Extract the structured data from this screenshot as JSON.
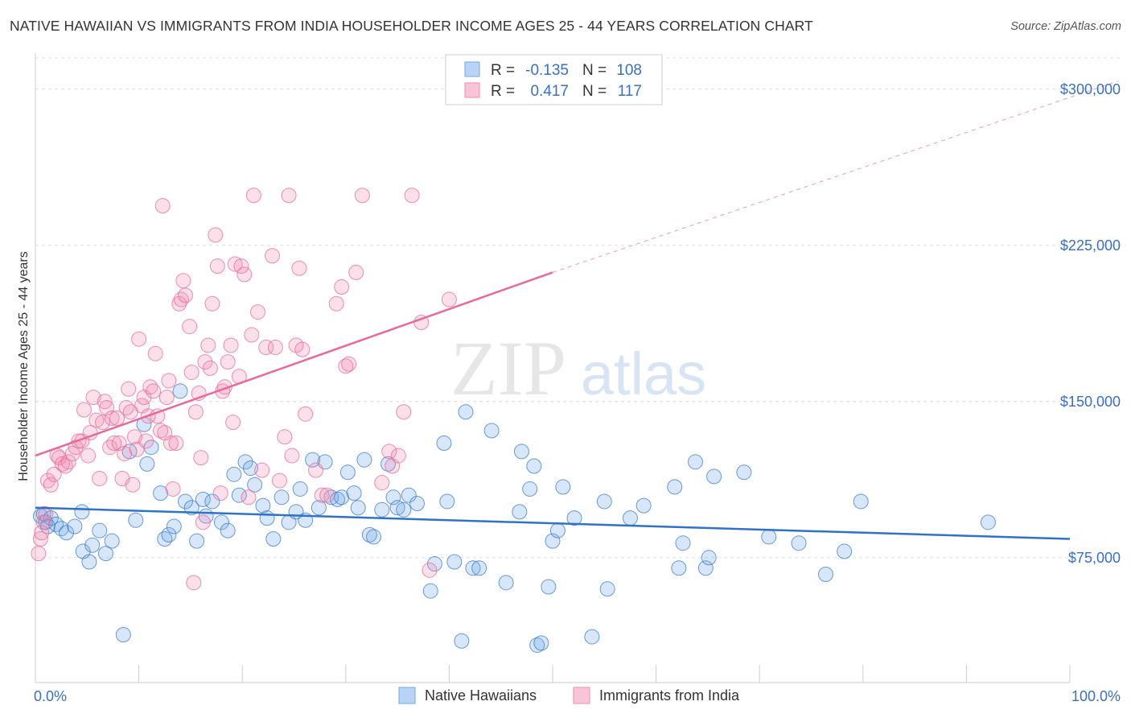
{
  "header": {
    "title": "NATIVE HAWAIIAN VS IMMIGRANTS FROM INDIA HOUSEHOLDER INCOME AGES 25 - 44 YEARS CORRELATION CHART",
    "source": "Source: ZipAtlas.com"
  },
  "watermark": {
    "zip": "ZIP",
    "atlas": "atlas"
  },
  "legend": {
    "r_label": "R =",
    "n_label": "N =",
    "rows": [
      {
        "r": "-0.135",
        "n": "108"
      },
      {
        "r": "0.417",
        "n": "117"
      }
    ]
  },
  "colors": {
    "blue": "#6fa8e8",
    "blue_line": "#2f72c8",
    "pink": "#f08bb0",
    "pink_line": "#e8699a",
    "axis_text": "#3a6fc4"
  },
  "chart_data": {
    "type": "scatter",
    "xlabel": "",
    "ylabel": "Householder Income Ages 25 - 44 years",
    "xlim": [
      0,
      100
    ],
    "ylim": [
      15000,
      315000
    ],
    "x_tick_labels": [
      "0.0%",
      "100.0%"
    ],
    "y_ticks": [
      {
        "value": 75000,
        "label": "$75,000"
      },
      {
        "value": 150000,
        "label": "$150,000"
      },
      {
        "value": 225000,
        "label": "$225,000"
      },
      {
        "value": 300000,
        "label": "$300,000"
      }
    ],
    "grid": "horizontal dashed",
    "legend_position": "top-center",
    "series": [
      {
        "name": "Native Hawaiians",
        "color": "#6fa8e8",
        "trend": {
          "x": [
            0,
            100
          ],
          "y": [
            99000,
            84000
          ],
          "dashed_extension": false
        },
        "points": [
          [
            0.5,
            95000
          ],
          [
            0.8,
            96000
          ],
          [
            1.0,
            92000
          ],
          [
            1.2,
            90000
          ],
          [
            1.5,
            94000
          ],
          [
            2.0,
            91000
          ],
          [
            2.5,
            89000
          ],
          [
            3.0,
            87000
          ],
          [
            3.8,
            90000
          ],
          [
            4.5,
            97000
          ],
          [
            4.6,
            78000
          ],
          [
            5.2,
            73000
          ],
          [
            5.5,
            81000
          ],
          [
            6.2,
            88000
          ],
          [
            6.8,
            77000
          ],
          [
            7.4,
            83000
          ],
          [
            8.5,
            38000
          ],
          [
            9.1,
            126000
          ],
          [
            9.7,
            93000
          ],
          [
            10.5,
            139000
          ],
          [
            10.8,
            120000
          ],
          [
            11.2,
            128000
          ],
          [
            12.1,
            106000
          ],
          [
            12.5,
            84000
          ],
          [
            12.9,
            86000
          ],
          [
            13.4,
            90000
          ],
          [
            14.0,
            155000
          ],
          [
            14.5,
            102000
          ],
          [
            15.1,
            99000
          ],
          [
            15.6,
            83000
          ],
          [
            16.2,
            103000
          ],
          [
            16.5,
            95000
          ],
          [
            17.1,
            102000
          ],
          [
            18.0,
            92000
          ],
          [
            18.6,
            88000
          ],
          [
            19.2,
            115000
          ],
          [
            19.7,
            105000
          ],
          [
            20.3,
            121000
          ],
          [
            20.8,
            118000
          ],
          [
            21.2,
            110000
          ],
          [
            22.0,
            100000
          ],
          [
            22.4,
            94000
          ],
          [
            23.0,
            84000
          ],
          [
            23.8,
            104000
          ],
          [
            24.5,
            92000
          ],
          [
            25.2,
            97000
          ],
          [
            25.6,
            108000
          ],
          [
            26.1,
            93000
          ],
          [
            26.8,
            122000
          ],
          [
            27.4,
            99000
          ],
          [
            28.0,
            121000
          ],
          [
            28.6,
            104000
          ],
          [
            29.2,
            103000
          ],
          [
            29.6,
            104000
          ],
          [
            30.2,
            116000
          ],
          [
            30.8,
            106000
          ],
          [
            31.2,
            99000
          ],
          [
            31.8,
            122000
          ],
          [
            32.3,
            86000
          ],
          [
            32.7,
            85000
          ],
          [
            33.5,
            98000
          ],
          [
            34.1,
            120000
          ],
          [
            34.6,
            104000
          ],
          [
            35.0,
            99000
          ],
          [
            35.6,
            98000
          ],
          [
            36.1,
            105000
          ],
          [
            36.9,
            101000
          ],
          [
            38.2,
            59000
          ],
          [
            38.6,
            72000
          ],
          [
            39.5,
            130000
          ],
          [
            39.8,
            102000
          ],
          [
            40.5,
            73000
          ],
          [
            41.2,
            35000
          ],
          [
            41.6,
            145000
          ],
          [
            42.3,
            70000
          ],
          [
            42.9,
            70000
          ],
          [
            44.1,
            136000
          ],
          [
            45.5,
            63000
          ],
          [
            46.8,
            97000
          ],
          [
            47.0,
            126000
          ],
          [
            47.8,
            108000
          ],
          [
            48.2,
            119000
          ],
          [
            48.5,
            33000
          ],
          [
            48.9,
            34000
          ],
          [
            49.6,
            61000
          ],
          [
            50.0,
            83000
          ],
          [
            50.5,
            88000
          ],
          [
            51.0,
            109000
          ],
          [
            52.1,
            94000
          ],
          [
            53.8,
            37000
          ],
          [
            55.0,
            102000
          ],
          [
            55.3,
            60000
          ],
          [
            57.5,
            94000
          ],
          [
            58.8,
            100000
          ],
          [
            61.8,
            109000
          ],
          [
            62.2,
            70000
          ],
          [
            62.6,
            82000
          ],
          [
            63.8,
            121000
          ],
          [
            64.8,
            70000
          ],
          [
            65.1,
            75000
          ],
          [
            65.6,
            114000
          ],
          [
            68.5,
            116000
          ],
          [
            70.9,
            85000
          ],
          [
            73.8,
            82000
          ],
          [
            76.4,
            67000
          ],
          [
            78.2,
            78000
          ],
          [
            79.8,
            102000
          ],
          [
            92.1,
            92000
          ]
        ]
      },
      {
        "name": "Immigrants from India",
        "color": "#f08bb0",
        "trend": {
          "x": [
            0,
            50
          ],
          "y": [
            124000,
            212000
          ],
          "dashed_extension": true,
          "dashed_to": [
            100,
            300000
          ]
        },
        "points": [
          [
            0.3,
            77000
          ],
          [
            0.5,
            84000
          ],
          [
            0.6,
            87000
          ],
          [
            0.8,
            92000
          ],
          [
            1.0,
            96000
          ],
          [
            1.2,
            112000
          ],
          [
            1.5,
            110000
          ],
          [
            1.8,
            115000
          ],
          [
            2.1,
            124000
          ],
          [
            2.3,
            123000
          ],
          [
            2.6,
            120000
          ],
          [
            2.9,
            119000
          ],
          [
            3.2,
            121000
          ],
          [
            3.6,
            125000
          ],
          [
            3.9,
            128000
          ],
          [
            4.2,
            131000
          ],
          [
            4.5,
            131000
          ],
          [
            4.7,
            146000
          ],
          [
            5.1,
            124000
          ],
          [
            5.3,
            135000
          ],
          [
            5.6,
            152000
          ],
          [
            5.9,
            141000
          ],
          [
            6.2,
            113000
          ],
          [
            6.5,
            140000
          ],
          [
            6.7,
            150000
          ],
          [
            6.9,
            147000
          ],
          [
            7.2,
            128000
          ],
          [
            7.4,
            142000
          ],
          [
            7.6,
            130000
          ],
          [
            7.9,
            142000
          ],
          [
            8.1,
            130000
          ],
          [
            8.4,
            113000
          ],
          [
            8.6,
            125000
          ],
          [
            8.8,
            147000
          ],
          [
            9.0,
            156000
          ],
          [
            9.2,
            145000
          ],
          [
            9.4,
            110000
          ],
          [
            9.6,
            133000
          ],
          [
            9.8,
            127000
          ],
          [
            10.0,
            180000
          ],
          [
            10.3,
            148000
          ],
          [
            10.5,
            152000
          ],
          [
            10.7,
            131000
          ],
          [
            10.9,
            143000
          ],
          [
            11.1,
            157000
          ],
          [
            11.4,
            155000
          ],
          [
            11.6,
            173000
          ],
          [
            11.8,
            143000
          ],
          [
            12.1,
            136000
          ],
          [
            12.3,
            244000
          ],
          [
            12.5,
            135000
          ],
          [
            12.7,
            152000
          ],
          [
            12.9,
            160000
          ],
          [
            13.1,
            130000
          ],
          [
            13.3,
            108000
          ],
          [
            13.6,
            130000
          ],
          [
            13.9,
            197000
          ],
          [
            14.1,
            199000
          ],
          [
            14.3,
            208000
          ],
          [
            14.5,
            201000
          ],
          [
            14.9,
            186000
          ],
          [
            15.1,
            164000
          ],
          [
            15.3,
            63000
          ],
          [
            15.5,
            145000
          ],
          [
            15.8,
            154000
          ],
          [
            16.0,
            123000
          ],
          [
            16.2,
            92000
          ],
          [
            16.4,
            169000
          ],
          [
            16.7,
            177000
          ],
          [
            16.9,
            166000
          ],
          [
            17.1,
            197000
          ],
          [
            17.4,
            230000
          ],
          [
            17.6,
            215000
          ],
          [
            17.9,
            106000
          ],
          [
            18.1,
            155000
          ],
          [
            18.3,
            157000
          ],
          [
            18.6,
            169000
          ],
          [
            18.9,
            177000
          ],
          [
            19.1,
            140000
          ],
          [
            19.3,
            216000
          ],
          [
            19.7,
            162000
          ],
          [
            19.9,
            215000
          ],
          [
            20.2,
            211000
          ],
          [
            20.6,
            104000
          ],
          [
            20.9,
            182000
          ],
          [
            21.1,
            249000
          ],
          [
            21.5,
            193000
          ],
          [
            21.9,
            117000
          ],
          [
            22.3,
            176000
          ],
          [
            22.9,
            220000
          ],
          [
            23.2,
            176000
          ],
          [
            23.6,
            112000
          ],
          [
            24.1,
            133000
          ],
          [
            24.5,
            249000
          ],
          [
            24.8,
            124000
          ],
          [
            25.2,
            177000
          ],
          [
            25.5,
            214000
          ],
          [
            25.8,
            175000
          ],
          [
            26.1,
            144000
          ],
          [
            27.1,
            117000
          ],
          [
            27.7,
            105000
          ],
          [
            28.2,
            105000
          ],
          [
            29.1,
            197000
          ],
          [
            29.6,
            205000
          ],
          [
            30.0,
            167000
          ],
          [
            30.3,
            168000
          ],
          [
            31.0,
            212000
          ],
          [
            31.6,
            249000
          ],
          [
            33.5,
            111000
          ],
          [
            34.2,
            126000
          ],
          [
            34.5,
            119000
          ],
          [
            35.1,
            124000
          ],
          [
            35.6,
            145000
          ],
          [
            36.4,
            249000
          ],
          [
            37.3,
            188000
          ],
          [
            38.1,
            69000
          ],
          [
            40.0,
            199000
          ]
        ]
      }
    ]
  },
  "bottom_legend": [
    {
      "label": "Native Hawaiians"
    },
    {
      "label": "Immigrants from India"
    }
  ]
}
